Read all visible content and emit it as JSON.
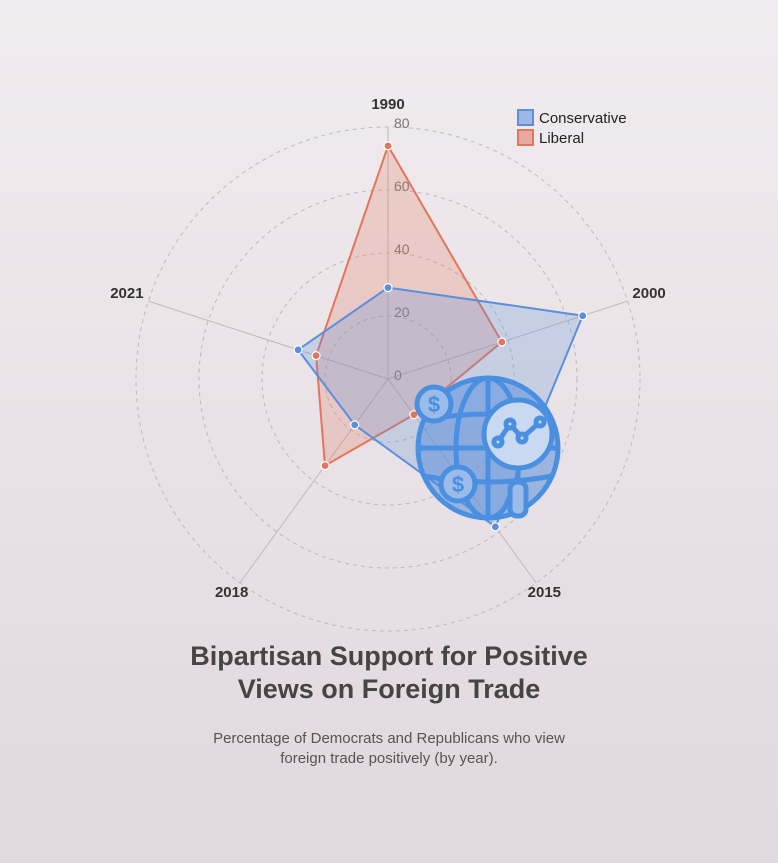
{
  "title_lines": [
    "Bipartisan Support for Positive",
    "Views on Foreign Trade"
  ],
  "subtitle_lines": [
    "Percentage of Democrats and Republicans who view",
    "foreign trade positively (by year)."
  ],
  "icon": "globe-trade-analytics-icon",
  "colors": {
    "conservative": "#5b8fdc",
    "liberal": "#e2765c",
    "grid": "#bbbbbb",
    "icon": "#4a8fe0"
  },
  "chart_data": {
    "type": "radar",
    "categories": [
      "1990",
      "2000",
      "2015",
      "2018",
      "2021"
    ],
    "radial_ticks": [
      "0",
      "20",
      "40",
      "60",
      "80"
    ],
    "rlim": [
      0,
      80
    ],
    "grid": true,
    "legend_position": "top-right",
    "series": [
      {
        "name": "Conservative",
        "values": [
          29,
          65,
          58,
          18,
          30
        ]
      },
      {
        "name": "Liberal",
        "values": [
          74,
          38,
          14,
          34,
          24
        ]
      }
    ]
  }
}
